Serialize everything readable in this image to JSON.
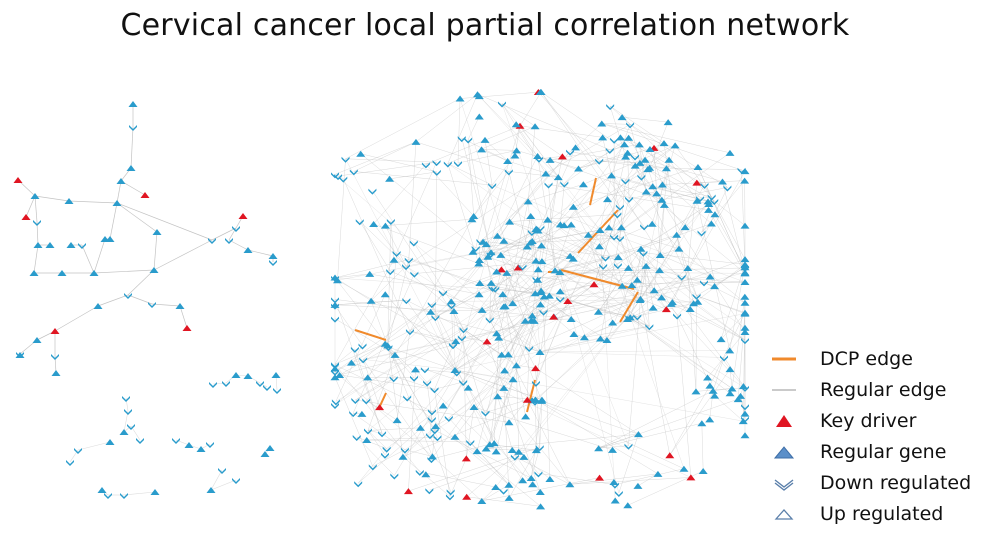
{
  "title": "Cervical cancer local partial correlation network",
  "colors": {
    "dcp_edge": "#f08a2c",
    "regular_edge": "#b9b9b9",
    "key_driver": "#e01522",
    "regular_gene": "#2a9ccc",
    "regular_gene_legend": "#5b8fc9",
    "outline": "#5a7faa"
  },
  "legend": {
    "items": [
      {
        "label": "DCP edge",
        "symbol": "orange-line"
      },
      {
        "label": "Regular edge",
        "symbol": "gray-line"
      },
      {
        "label": "Key driver",
        "symbol": "red-triangle"
      },
      {
        "label": "Regular gene",
        "symbol": "blue-triangle"
      },
      {
        "label": "Down regulated",
        "symbol": "chevron-down-outline"
      },
      {
        "label": "Up regulated",
        "symbol": "triangle-outline"
      }
    ]
  }
}
